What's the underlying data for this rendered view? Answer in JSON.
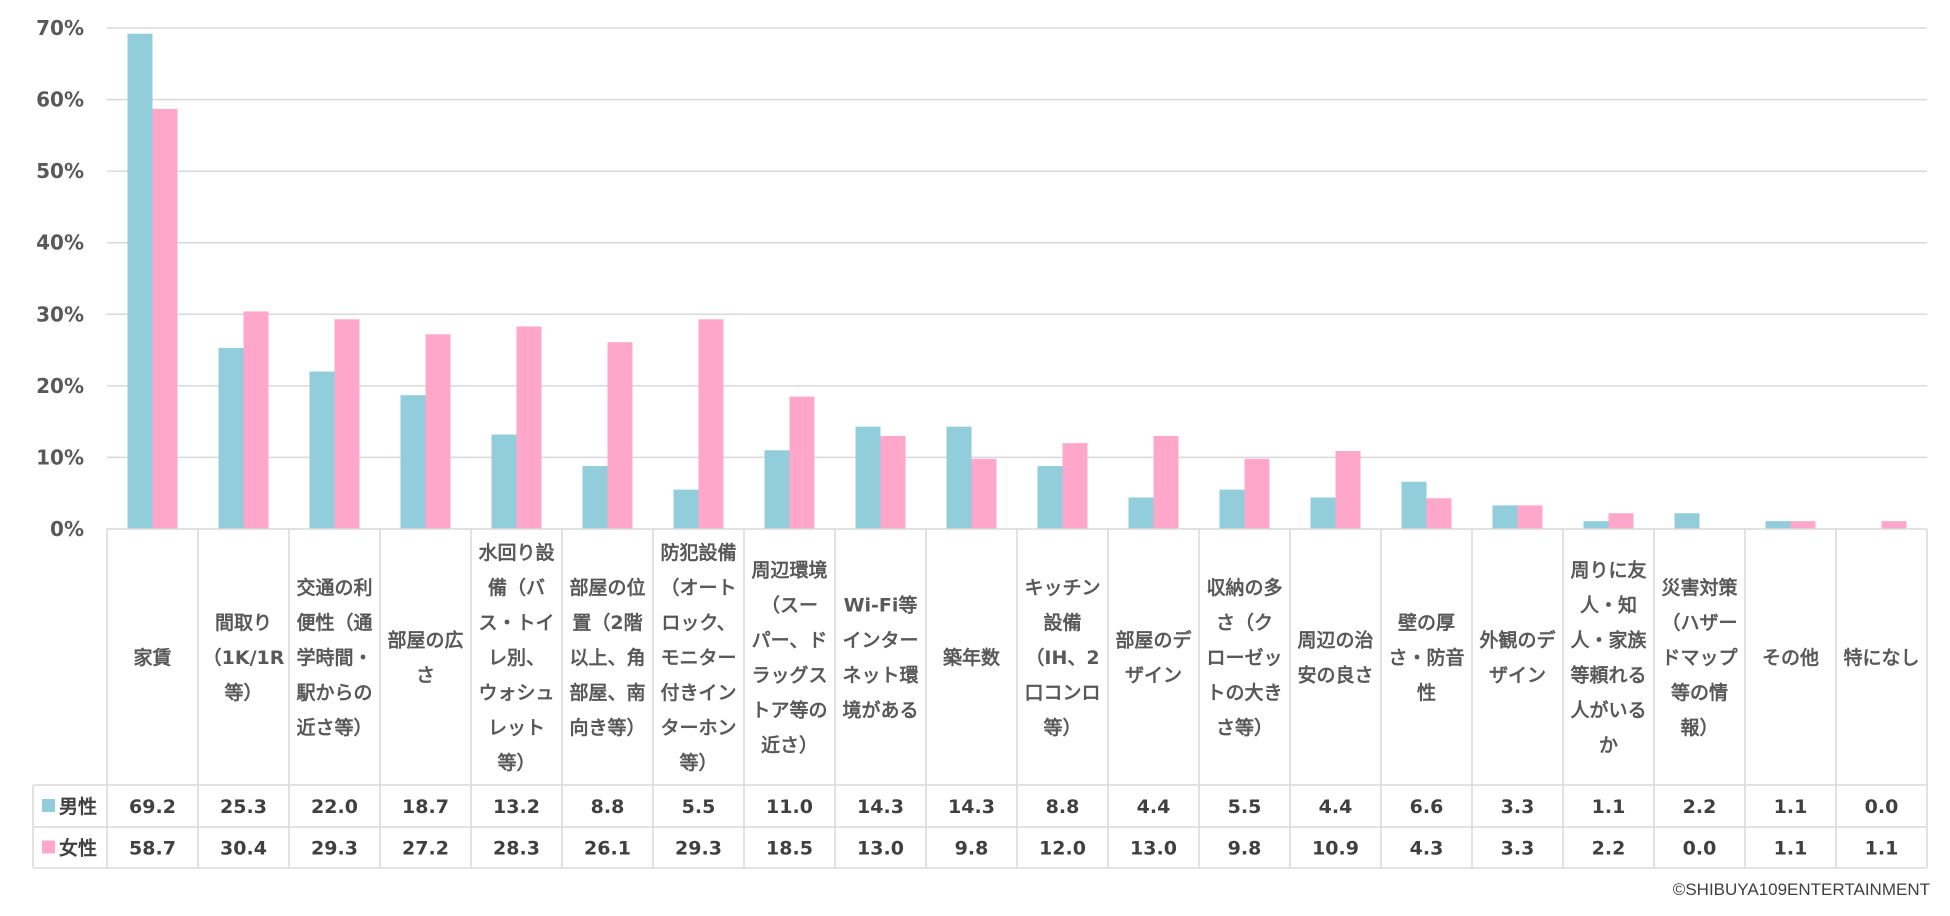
{
  "chart_data": {
    "type": "bar",
    "ylim": [
      0,
      70
    ],
    "y_ticks": [
      "0%",
      "10%",
      "20%",
      "30%",
      "40%",
      "50%",
      "60%",
      "70%"
    ],
    "grid": true,
    "legend": "data-table",
    "categories": [
      [
        "家賃"
      ],
      [
        "間取り",
        "（1K/1R",
        "等）"
      ],
      [
        "交通の利",
        "便性（通",
        "学時間・",
        "駅からの",
        "近さ等）"
      ],
      [
        "部屋の広",
        "さ"
      ],
      [
        "水回り設",
        "備（バ",
        "ス・トイ",
        "レ別、",
        "ウォシュ",
        "レット",
        "等）"
      ],
      [
        "部屋の位",
        "置（2階",
        "以上、角",
        "部屋、南",
        "向き等）"
      ],
      [
        "防犯設備",
        "（オート",
        "ロック、",
        "モニター",
        "付きイン",
        "ターホン",
        "等）"
      ],
      [
        "周辺環境",
        "（スー",
        "パー、ド",
        "ラッグス",
        "トア等の",
        "近さ）"
      ],
      [
        "Wi-Fi等",
        "インター",
        "ネット環",
        "境がある"
      ],
      [
        "築年数"
      ],
      [
        "キッチン",
        "設備",
        "（IH、2",
        "口コンロ",
        "等）"
      ],
      [
        "部屋のデ",
        "ザイン"
      ],
      [
        "収納の多",
        "さ（ク",
        "ローゼッ",
        "トの大き",
        "さ等）"
      ],
      [
        "周辺の治",
        "安の良さ"
      ],
      [
        "壁の厚",
        "さ・防音",
        "性"
      ],
      [
        "外観のデ",
        "ザイン"
      ],
      [
        "周りに友",
        "人・知",
        "人・家族",
        "等頼れる",
        "人がいる",
        "か"
      ],
      [
        "災害対策",
        "（ハザー",
        "ドマップ",
        "等の情",
        "報）"
      ],
      [
        "その他"
      ],
      [
        "特になし"
      ]
    ],
    "series": [
      {
        "name": "男性",
        "color": "#92CDDC",
        "values": [
          69.2,
          25.3,
          22.0,
          18.7,
          13.2,
          8.8,
          5.5,
          11.0,
          14.3,
          14.3,
          8.8,
          4.4,
          5.5,
          4.4,
          6.6,
          3.3,
          1.1,
          2.2,
          1.1,
          0.0
        ],
        "labels": [
          "69.2",
          "25.3",
          "22.0",
          "18.7",
          "13.2",
          "8.8",
          "5.5",
          "11.0",
          "14.3",
          "14.3",
          "8.8",
          "4.4",
          "5.5",
          "4.4",
          "6.6",
          "3.3",
          "1.1",
          "2.2",
          "1.1",
          "0.0"
        ]
      },
      {
        "name": "女性",
        "color": "#FFA6CB",
        "values": [
          58.7,
          30.4,
          29.3,
          27.2,
          28.3,
          26.1,
          29.3,
          18.5,
          13.0,
          9.8,
          12.0,
          13.0,
          9.8,
          10.9,
          4.3,
          3.3,
          2.2,
          0.0,
          1.1,
          1.1
        ],
        "labels": [
          "58.7",
          "30.4",
          "29.3",
          "27.2",
          "28.3",
          "26.1",
          "29.3",
          "18.5",
          "13.0",
          "9.8",
          "12.0",
          "13.0",
          "9.8",
          "10.9",
          "4.3",
          "3.3",
          "2.2",
          "0.0",
          "1.1",
          "1.1"
        ]
      }
    ]
  },
  "footer": {
    "copyright": "©SHIBUYA109ENTERTAINMENT"
  }
}
